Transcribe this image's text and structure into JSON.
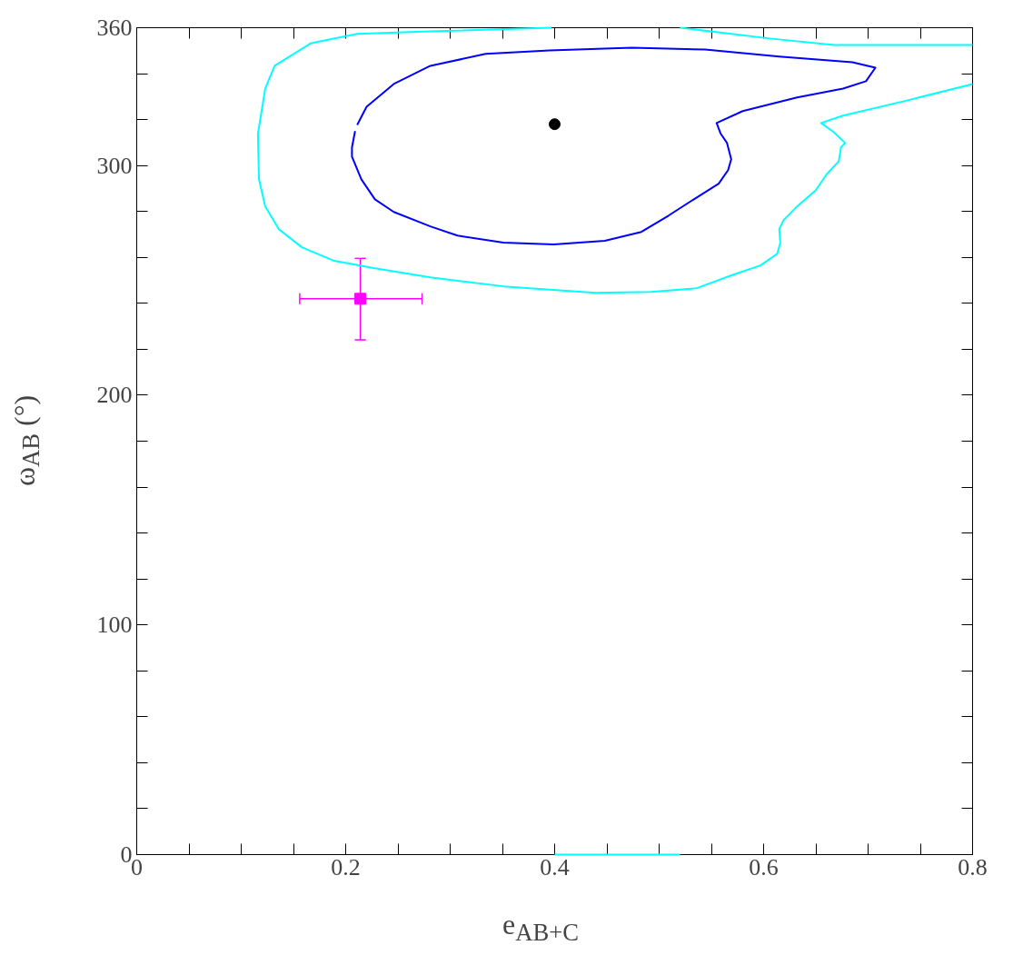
{
  "chart_data": {
    "type": "line",
    "xlabel": "e$_{AB+C}$",
    "ylabel": "ω$_{AB}$ (°)",
    "xlim": [
      0,
      0.8
    ],
    "ylim": [
      0,
      360
    ],
    "xticks": [
      0,
      {
        "value": 0.05,
        "label": null
      },
      {
        "value": 0.1,
        "label": null
      },
      {
        "value": 0.15,
        "label": null
      },
      0.2,
      {
        "value": 0.25,
        "label": null
      },
      {
        "value": 0.3,
        "label": null
      },
      {
        "value": 0.35,
        "label": null
      },
      0.4,
      {
        "value": 0.45,
        "label": null
      },
      {
        "value": 0.5,
        "label": null
      },
      {
        "value": 0.55,
        "label": null
      },
      0.6,
      {
        "value": 0.65,
        "label": null
      },
      {
        "value": 0.7,
        "label": null
      },
      {
        "value": 0.75,
        "label": null
      },
      0.8
    ],
    "yticks": [
      0,
      {
        "value": 20,
        "label": null
      },
      {
        "value": 40,
        "label": null
      },
      {
        "value": 60,
        "label": null
      },
      {
        "value": 80,
        "label": null
      },
      100,
      {
        "value": 120,
        "label": null
      },
      {
        "value": 140,
        "label": null
      },
      {
        "value": 160,
        "label": null
      },
      {
        "value": 180,
        "label": null
      },
      200,
      {
        "value": 220,
        "label": null
      },
      {
        "value": 240,
        "label": null
      },
      {
        "value": 260,
        "label": null
      },
      {
        "value": 280,
        "label": null
      },
      300,
      {
        "value": 320,
        "label": null
      },
      {
        "value": 340,
        "label": null
      },
      360
    ],
    "grid": false,
    "marker": "none",
    "line_style": "solid",
    "series": [
      {
        "color": "#00ffff",
        "x": [
          0.397,
          0.281,
          0.211,
          0.167,
          0.132,
          0.123,
          0.116,
          0.117,
          0.123,
          0.136,
          0.158,
          0.189,
          0.228,
          0.281,
          0.351,
          0.439,
          0.492,
          0.536,
          0.571,
          0.597,
          0.613,
          0.616,
          0.615,
          0.619,
          0.632,
          0.65,
          0.66,
          0.672,
          0.674,
          0.678,
          0.667,
          0.655,
          0.676,
          0.738,
          0.8
        ],
        "values": [
          360,
          358.4,
          357.3,
          353.3,
          343.4,
          333.5,
          313.8,
          294.0,
          282.2,
          272.3,
          264.4,
          258.5,
          255.3,
          251.3,
          247.4,
          244.6,
          245.0,
          246.6,
          252.5,
          256.5,
          261.6,
          266.4,
          272.3,
          276.2,
          282.2,
          289.3,
          296.0,
          301.9,
          307.9,
          309.8,
          314.6,
          318.5,
          321.7,
          328.4,
          335.5
        ]
      },
      {
        "color": "#00ffff",
        "x": [
          0.52,
          0.606,
          0.667,
          0.8
        ],
        "values": [
          360,
          355.3,
          352.5,
          352.5
        ]
      },
      {
        "color": "#00ffff",
        "x": [
          0.4,
          0.52
        ],
        "values": [
          0,
          0
        ]
      },
      {
        "color": "#0000ff",
        "x": [
          0.211,
          0.22,
          0.246,
          0.281,
          0.334,
          0.395,
          0.474,
          0.544,
          0.615,
          0.685,
          0.707,
          0.698,
          0.676,
          0.632,
          0.58,
          0.555,
          0.559,
          0.565,
          0.569,
          0.566,
          0.557,
          0.536,
          0.509,
          0.483,
          0.448,
          0.399,
          0.351,
          0.307,
          0.281,
          0.246,
          0.228,
          0.215,
          0.206,
          0.206,
          0.209
        ],
        "values": [
          317.7,
          325.6,
          335.5,
          343.4,
          348.6,
          350.1,
          351.3,
          350.5,
          347.4,
          345.0,
          342.6,
          336.7,
          333.5,
          329.6,
          323.7,
          318.5,
          313.8,
          309.8,
          302.7,
          298.0,
          292.1,
          286.1,
          278.2,
          271.1,
          267.2,
          265.6,
          266.4,
          269.5,
          273.5,
          279.8,
          285.3,
          294.0,
          303.9,
          307.9,
          315
        ]
      },
      {
        "type": "scatter",
        "marker": "circle",
        "color": "#000000",
        "x": [
          0.4
        ],
        "values": [
          318
        ]
      },
      {
        "type": "scatter",
        "marker": "square",
        "color": "#ff00ff",
        "x": [
          0.214
        ],
        "values": [
          242
        ],
        "errors": [
          [
            224.1,
            259.6
          ]
        ],
        "xerrors": [
          [
            0.156,
            0.273
          ]
        ]
      }
    ]
  }
}
